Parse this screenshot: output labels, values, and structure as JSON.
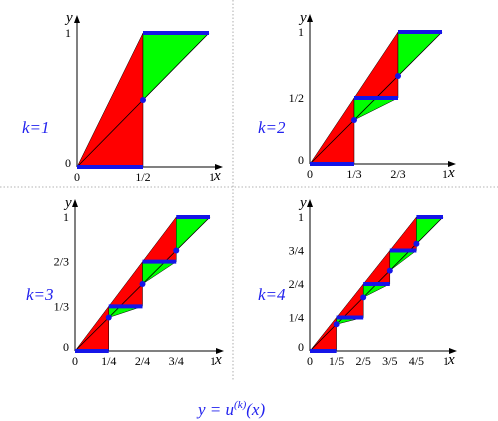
{
  "caption": {
    "lhs": "y = u",
    "sup": "(k)",
    "arg": "(x)"
  },
  "colors": {
    "red": "#ff0000",
    "green": "#00ff00",
    "blue": "#1515e8",
    "label": "#2222ee",
    "divider": "#9a9a9a"
  },
  "axis_labels": {
    "x": "x",
    "y": "y"
  },
  "panels": [
    {
      "k": 1,
      "label": "k=1",
      "xticks": [
        "0",
        "1/2",
        "1"
      ],
      "yticks": [
        "0",
        "1"
      ]
    },
    {
      "k": 2,
      "label": "k=2",
      "xticks": [
        "0",
        "1/3",
        "2/3",
        "1"
      ],
      "yticks": [
        "0",
        "1/2",
        "1"
      ]
    },
    {
      "k": 3,
      "label": "k=3",
      "xticks": [
        "0",
        "1/4",
        "2/4",
        "3/4",
        "1"
      ],
      "yticks": [
        "0",
        "1/3",
        "2/3",
        "1"
      ]
    },
    {
      "k": 4,
      "label": "k=4",
      "xticks": [
        "0",
        "1/5",
        "2/5",
        "3/5",
        "4/5",
        "1"
      ],
      "yticks": [
        "0",
        "1/4",
        "2/4",
        "3/4",
        "1"
      ]
    }
  ]
}
